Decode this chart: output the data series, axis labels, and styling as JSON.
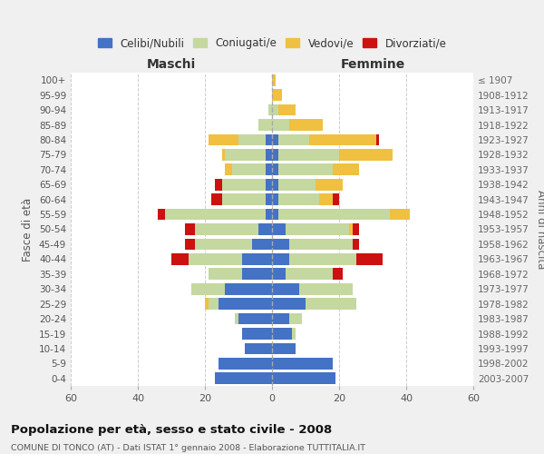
{
  "age_groups": [
    "0-4",
    "5-9",
    "10-14",
    "15-19",
    "20-24",
    "25-29",
    "30-34",
    "35-39",
    "40-44",
    "45-49",
    "50-54",
    "55-59",
    "60-64",
    "65-69",
    "70-74",
    "75-79",
    "80-84",
    "85-89",
    "90-94",
    "95-99",
    "100+"
  ],
  "birth_years": [
    "2003-2007",
    "1998-2002",
    "1993-1997",
    "1988-1992",
    "1983-1987",
    "1978-1982",
    "1973-1977",
    "1968-1972",
    "1963-1967",
    "1958-1962",
    "1953-1957",
    "1948-1952",
    "1943-1947",
    "1938-1942",
    "1933-1937",
    "1928-1932",
    "1923-1927",
    "1918-1922",
    "1913-1917",
    "1908-1912",
    "≤ 1907"
  ],
  "colors": {
    "celibi": "#4472c4",
    "coniugati": "#c5d8a0",
    "vedovi": "#f0c040",
    "divorziati": "#cc1111"
  },
  "males": {
    "celibi": [
      17,
      16,
      8,
      9,
      10,
      16,
      14,
      9,
      9,
      6,
      4,
      2,
      2,
      2,
      2,
      2,
      2,
      0,
      0,
      0,
      0
    ],
    "coniugati": [
      0,
      0,
      0,
      0,
      1,
      3,
      10,
      10,
      16,
      17,
      19,
      30,
      13,
      13,
      10,
      12,
      8,
      4,
      1,
      0,
      0
    ],
    "vedovi": [
      0,
      0,
      0,
      0,
      0,
      1,
      0,
      0,
      0,
      0,
      0,
      0,
      0,
      0,
      2,
      1,
      9,
      0,
      0,
      0,
      0
    ],
    "divorziati": [
      0,
      0,
      0,
      0,
      0,
      0,
      0,
      0,
      5,
      3,
      3,
      2,
      3,
      2,
      0,
      0,
      0,
      0,
      0,
      0,
      0
    ]
  },
  "females": {
    "celibi": [
      19,
      18,
      7,
      6,
      5,
      10,
      8,
      4,
      5,
      5,
      4,
      2,
      2,
      2,
      2,
      2,
      2,
      0,
      0,
      0,
      0
    ],
    "coniugati": [
      0,
      0,
      0,
      1,
      4,
      15,
      16,
      14,
      20,
      19,
      19,
      33,
      12,
      11,
      16,
      18,
      9,
      5,
      2,
      0,
      0
    ],
    "vedovi": [
      0,
      0,
      0,
      0,
      0,
      0,
      0,
      0,
      0,
      0,
      1,
      6,
      4,
      8,
      8,
      16,
      20,
      10,
      5,
      3,
      1
    ],
    "divorziati": [
      0,
      0,
      0,
      0,
      0,
      0,
      0,
      3,
      8,
      2,
      2,
      0,
      2,
      0,
      0,
      0,
      1,
      0,
      0,
      0,
      0
    ]
  },
  "title": "Popolazione per età, sesso e stato civile - 2008",
  "subtitle": "COMUNE DI TONCO (AT) - Dati ISTAT 1° gennaio 2008 - Elaborazione TUTTITALIA.IT",
  "xlabel_left": "Maschi",
  "xlabel_right": "Femmine",
  "ylabel_left": "Fasce di età",
  "ylabel_right": "Anni di nascita",
  "xlim": 60,
  "background_color": "#f0f0f0",
  "plot_bg": "#ffffff",
  "grid_color": "#cccccc",
  "legend_labels": [
    "Celibi/Nubili",
    "Coniugati/e",
    "Vedovi/e",
    "Divorziati/e"
  ]
}
